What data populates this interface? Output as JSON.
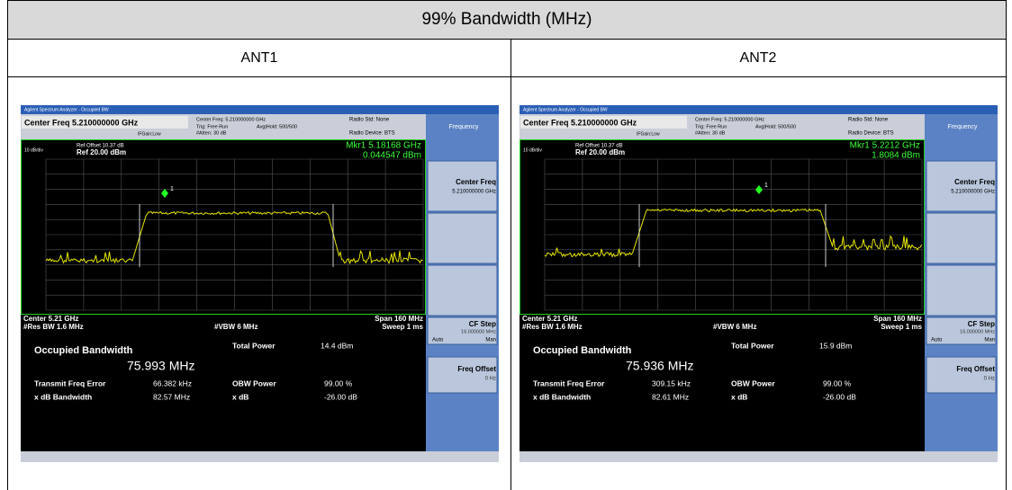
{
  "title": "99% Bandwidth (MHz)",
  "columns": [
    {
      "header": "ANT1",
      "screen": {
        "app_title": "Agilent Spectrum Analyzer - Occupied BW",
        "header_freq": "Center Freq 5.210000000 GHz",
        "if_gain": "IFGain:Low",
        "cf_info": "Center Freq: 5.210000000 GHz",
        "trig": "Trig: Free Run",
        "avg": "Avg|Hold: 500/500",
        "atten": "#Atten: 30 dB",
        "radio_std": "Radio Std: None",
        "radio_device": "Radio Device: BTS",
        "scale": "10 dB/div",
        "ref_offset": "Ref Offset 10.37 dB",
        "ref_level": "Ref 20.00 dBm",
        "mkr_freq": "Mkr1  5.18168 GHz",
        "mkr_val": "0.044547 dBm",
        "mkr_num": "1",
        "center": "Center  5.21 GHz",
        "rbw": "#Res BW  1.6 MHz",
        "vbw": "#VBW  6 MHz",
        "span": "Span 160 MHz",
        "sweep": "Sweep  1 ms",
        "obw_label": "Occupied Bandwidth",
        "obw_value": "75.993 MHz",
        "tp_label": "Total Power",
        "tp_value": "14.4 dBm",
        "tfe_label": "Transmit Freq Error",
        "tfe_value": "66.382 kHz",
        "obwp_label": "OBW Power",
        "obwp_value": "99.00 %",
        "xdb_bw_label": "x dB Bandwidth",
        "xdb_bw_value": "82.57 MHz",
        "xdb_label": "x dB",
        "xdb_value": "-26.00 dB",
        "sk_title": "Frequency",
        "sk_cf": "Center Freq",
        "sk_cf_val": "5.210000000 GHz",
        "sk_step": "CF Step",
        "sk_step_val": "16.000000 MHz",
        "sk_auto": "Auto",
        "sk_man": "Man",
        "sk_offset": "Freq Offset",
        "sk_offset_val": "0 Hz"
      }
    },
    {
      "header": "ANT2",
      "screen": {
        "app_title": "Agilent Spectrum Analyzer - Occupied BW",
        "header_freq": "Center Freq 5.210000000 GHz",
        "if_gain": "IFGain:Low",
        "cf_info": "Center Freq: 5.210000000 GHz",
        "trig": "Trig: Free Run",
        "avg": "Avg|Hold: 500/500",
        "atten": "#Atten: 30 dB",
        "radio_std": "Radio Std: None",
        "radio_device": "Radio Device: BTS",
        "scale": "10 dB/div",
        "ref_offset": "Ref Offset 10.37 dB",
        "ref_level": "Ref 20.00 dBm",
        "mkr_freq": "Mkr1  5.2212 GHz",
        "mkr_val": "1.8084 dBm",
        "mkr_num": "1",
        "center": "Center  5.21 GHz",
        "rbw": "#Res BW  1.6 MHz",
        "vbw": "#VBW  6 MHz",
        "span": "Span 160 MHz",
        "sweep": "Sweep  1 ms",
        "obw_label": "Occupied Bandwidth",
        "obw_value": "75.936 MHz",
        "tp_label": "Total Power",
        "tp_value": "15.9 dBm",
        "tfe_label": "Transmit Freq Error",
        "tfe_value": "309.15 kHz",
        "obwp_label": "OBW Power",
        "obwp_value": "99.00 %",
        "xdb_bw_label": "x dB Bandwidth",
        "xdb_bw_value": "82.61 MHz",
        "xdb_label": "x dB",
        "xdb_value": "-26.00 dB",
        "sk_title": "Frequency",
        "sk_cf": "Center Freq",
        "sk_cf_val": "5.210000000 GHz",
        "sk_step": "CF Step",
        "sk_step_val": "16.000000 MHz",
        "sk_auto": "Auto",
        "sk_man": "Man",
        "sk_offset": "Freq Offset",
        "sk_offset_val": "0 Hz"
      }
    }
  ]
}
